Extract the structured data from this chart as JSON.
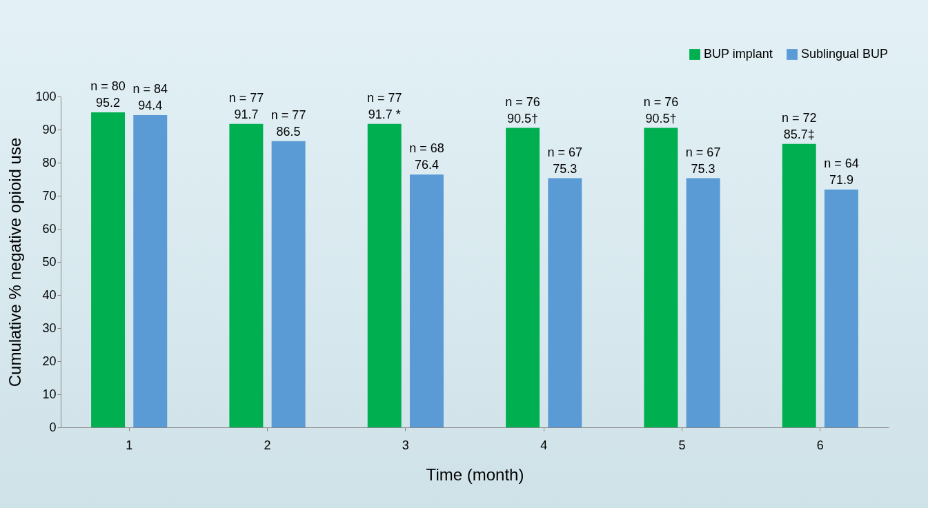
{
  "chart_data": {
    "type": "bar",
    "xlabel": "Time (month)",
    "ylabel": "Cumulative % negative opioid use",
    "categories": [
      "1",
      "2",
      "3",
      "4",
      "5",
      "6"
    ],
    "series": [
      {
        "name": "BUP implant",
        "color": "#00b050",
        "values": [
          95.2,
          91.7,
          91.7,
          90.5,
          90.5,
          85.7
        ],
        "value_labels": [
          "n = 80\n95.2",
          "n = 77\n91.7",
          "n = 77\n91.7 *",
          "n = 76\n90.5†",
          "n = 76\n90.5†",
          "n = 72\n85.7‡"
        ]
      },
      {
        "name": "Sublingual BUP",
        "color": "#5b9bd5",
        "values": [
          94.4,
          86.5,
          76.4,
          75.3,
          75.3,
          71.9
        ],
        "value_labels": [
          "n = 84\n94.4",
          "n = 77\n86.5",
          "n = 68\n76.4",
          "n = 67\n75.3",
          "n = 67\n75.3",
          "n = 64\n71.9"
        ]
      }
    ],
    "ylim": [
      0,
      100
    ],
    "yticks": [
      0,
      10,
      20,
      30,
      40,
      50,
      60,
      70,
      80,
      90,
      100
    ],
    "grid": false,
    "legend": "top right"
  }
}
